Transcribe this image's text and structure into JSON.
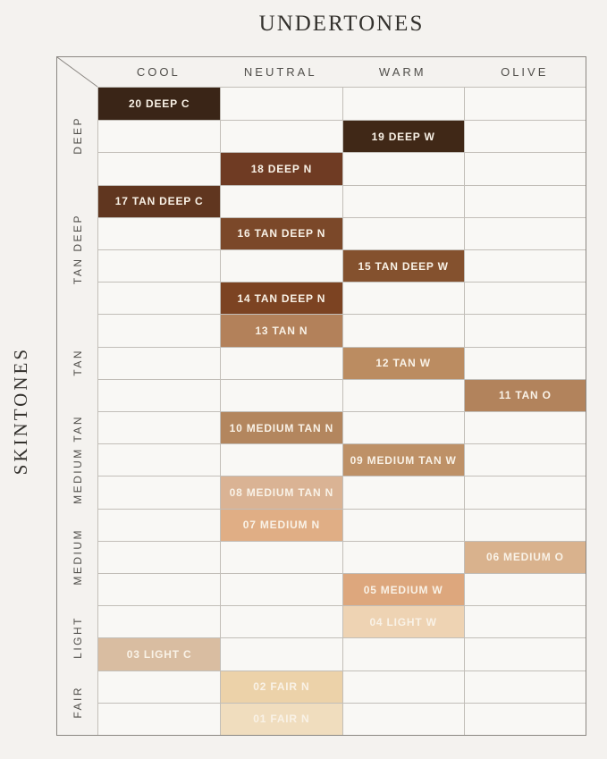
{
  "title": "UNDERTONES",
  "side_label": "SKINTONES",
  "colors": {
    "page_background": "#f4f2ef",
    "cell_background": "#f9f8f5",
    "grid_line": "#c2beb8",
    "outer_border": "#8b8782",
    "header_text": "#504e4a",
    "title_text": "#33312d",
    "swatch_label_text": "#f9f2e7"
  },
  "chart_data": {
    "type": "heatmap",
    "title": "UNDERTONES",
    "xlabel": "UNDERTONES",
    "ylabel": "SKINTONES",
    "grid": true,
    "legend_position": "none",
    "x_categories": [
      "COOL",
      "NEUTRAL",
      "WARM",
      "OLIVE"
    ],
    "y_groups": [
      {
        "label": "DEEP",
        "rows": 3
      },
      {
        "label": "TAN DEEP",
        "rows": 4
      },
      {
        "label": "TAN",
        "rows": 3
      },
      {
        "label": "MEDIUM TAN",
        "rows": 3
      },
      {
        "label": "MEDIUM",
        "rows": 3
      },
      {
        "label": "LIGHT",
        "rows": 2
      },
      {
        "label": "FAIR",
        "rows": 2
      }
    ],
    "row_count": 20,
    "shades": [
      {
        "label": "20 DEEP C",
        "row": 1,
        "undertone": "COOL",
        "skintone": "DEEP",
        "color": "#3a2517"
      },
      {
        "label": "19 DEEP W",
        "row": 2,
        "undertone": "WARM",
        "skintone": "DEEP",
        "color": "#402817"
      },
      {
        "label": "18 DEEP N",
        "row": 3,
        "undertone": "NEUTRAL",
        "skintone": "DEEP",
        "color": "#6f3b23"
      },
      {
        "label": "17 TAN DEEP C",
        "row": 4,
        "undertone": "COOL",
        "skintone": "TAN DEEP",
        "color": "#60361f"
      },
      {
        "label": "16 TAN DEEP N",
        "row": 5,
        "undertone": "NEUTRAL",
        "skintone": "TAN DEEP",
        "color": "#7b4829"
      },
      {
        "label": "15 TAN DEEP W",
        "row": 6,
        "undertone": "WARM",
        "skintone": "TAN DEEP",
        "color": "#84512e"
      },
      {
        "label": "14 TAN DEEP N",
        "row": 7,
        "undertone": "NEUTRAL",
        "skintone": "TAN DEEP",
        "color": "#7c4322"
      },
      {
        "label": "13 TAN N",
        "row": 8,
        "undertone": "NEUTRAL",
        "skintone": "TAN",
        "color": "#b3815a"
      },
      {
        "label": "12 TAN W",
        "row": 9,
        "undertone": "WARM",
        "skintone": "TAN",
        "color": "#bb8c61"
      },
      {
        "label": "11 TAN O",
        "row": 10,
        "undertone": "OLIVE",
        "skintone": "TAN",
        "color": "#b2835c"
      },
      {
        "label": "10 MEDIUM TAN N",
        "row": 11,
        "undertone": "NEUTRAL",
        "skintone": "MEDIUM TAN",
        "color": "#b3865e"
      },
      {
        "label": "09 MEDIUM TAN W",
        "row": 12,
        "undertone": "WARM",
        "skintone": "MEDIUM TAN",
        "color": "#be9167"
      },
      {
        "label": "08 MEDIUM TAN N",
        "row": 13,
        "undertone": "NEUTRAL",
        "skintone": "MEDIUM TAN",
        "color": "#dab394"
      },
      {
        "label": "07 MEDIUM N",
        "row": 14,
        "undertone": "NEUTRAL",
        "skintone": "MEDIUM",
        "color": "#e0ae85"
      },
      {
        "label": "06 MEDIUM O",
        "row": 15,
        "undertone": "OLIVE",
        "skintone": "MEDIUM",
        "color": "#d9b28d"
      },
      {
        "label": "05 MEDIUM W",
        "row": 16,
        "undertone": "WARM",
        "skintone": "MEDIUM",
        "color": "#dda77d"
      },
      {
        "label": "04 LIGHT W",
        "row": 17,
        "undertone": "WARM",
        "skintone": "LIGHT",
        "color": "#eed3b3"
      },
      {
        "label": "03 LIGHT C",
        "row": 18,
        "undertone": "COOL",
        "skintone": "LIGHT",
        "color": "#d9bda1"
      },
      {
        "label": "02 FAIR N",
        "row": 19,
        "undertone": "NEUTRAL",
        "skintone": "FAIR",
        "color": "#ecd2a9"
      },
      {
        "label": "01 FAIR N",
        "row": 20,
        "undertone": "NEUTRAL",
        "skintone": "FAIR",
        "color": "#f0ddbe"
      }
    ]
  }
}
